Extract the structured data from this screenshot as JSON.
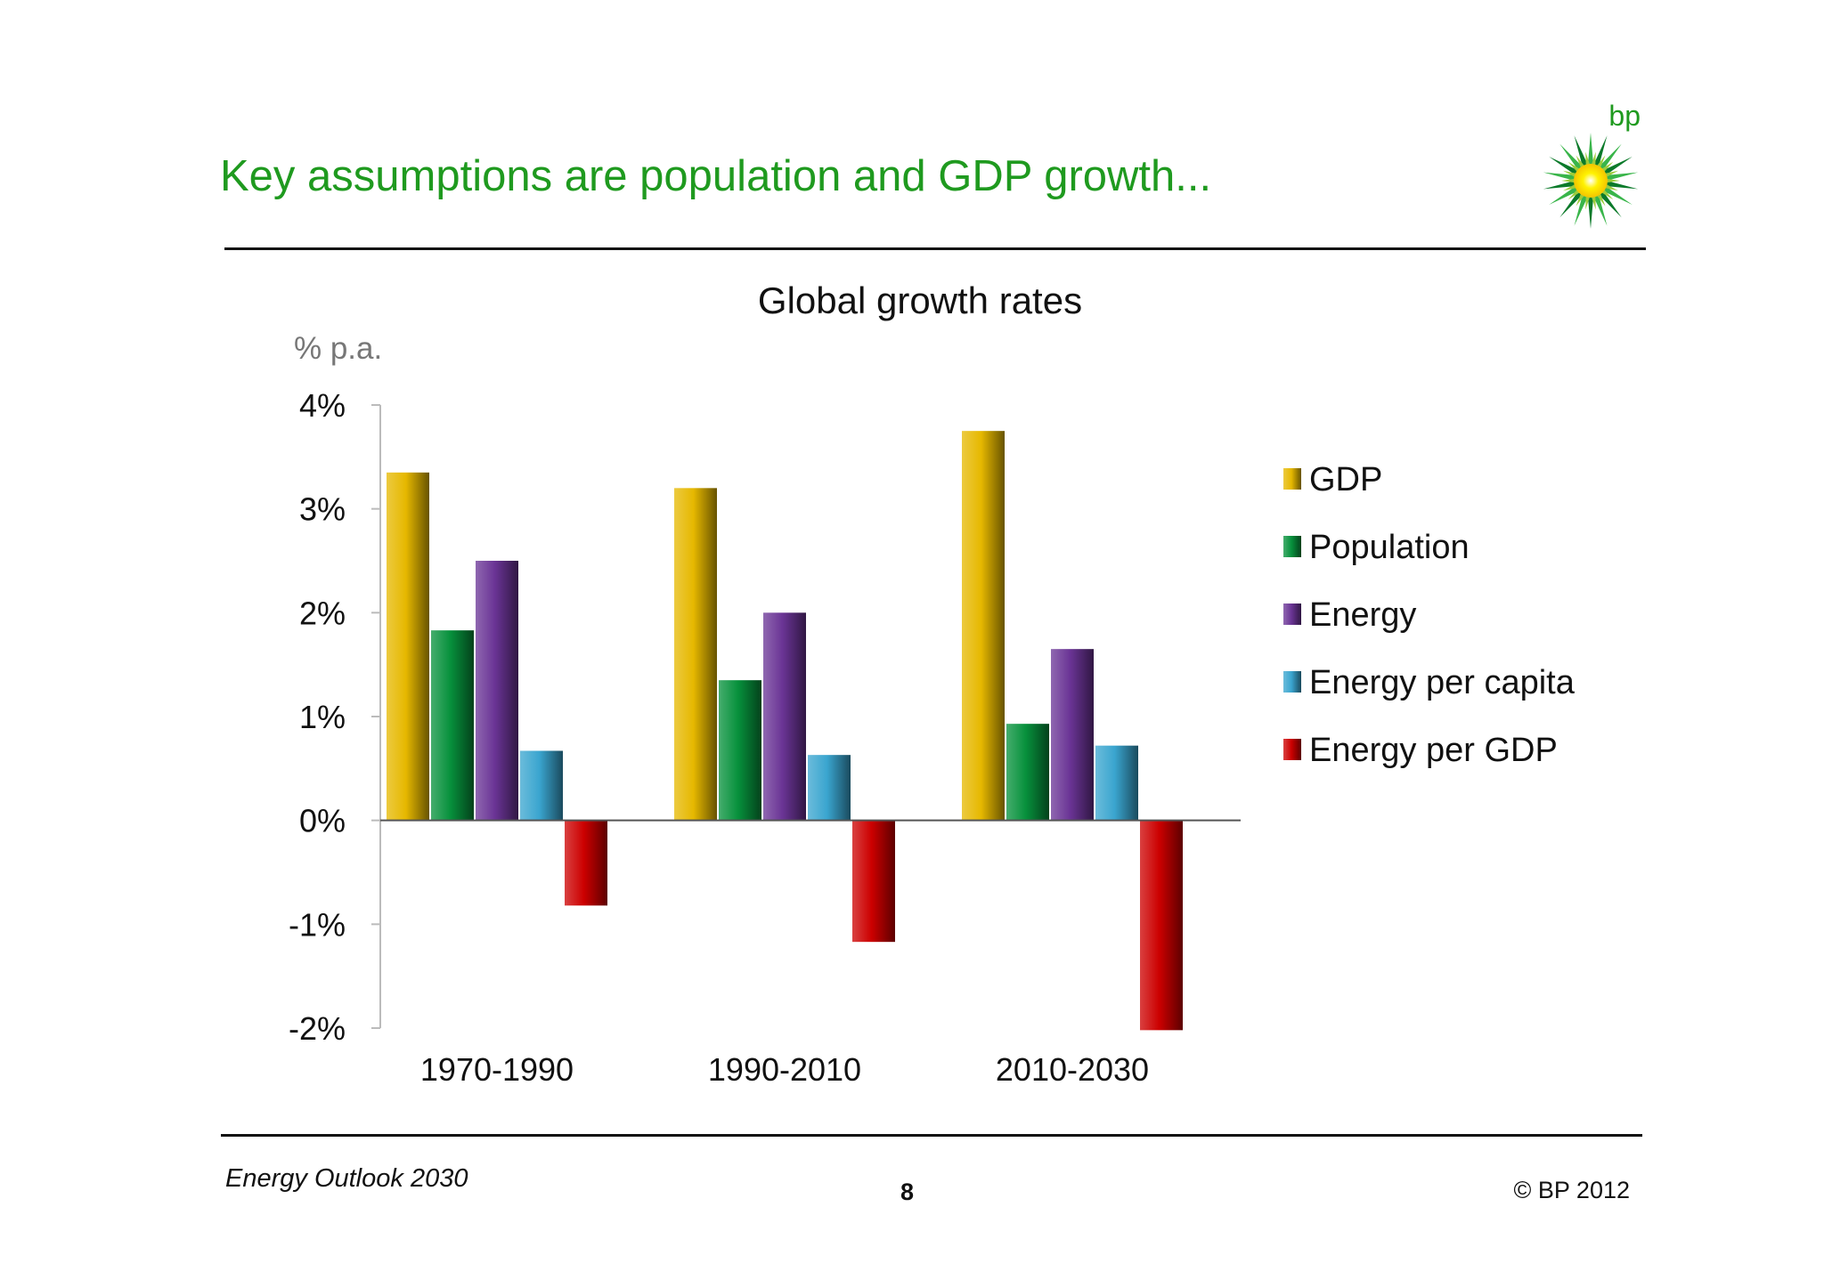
{
  "slide": {
    "title": "Key assumptions are population and GDP growth...",
    "brand": "bp",
    "footer_left": "Energy Outlook 2030",
    "page_number": "8",
    "copyright": "© BP 2012"
  },
  "colors": {
    "title": "#1f9a1f",
    "GDP": "#e6b800",
    "Population": "#07913c",
    "Energy": "#6a3495",
    "Energy per capita": "#3aa5cf",
    "Energy per GDP": "#cc0000"
  },
  "chart_data": {
    "type": "bar",
    "title": "Global growth rates",
    "ylabel": "% p.a.",
    "ylim": [
      -2,
      4
    ],
    "yticks": [
      "4%",
      "3%",
      "2%",
      "1%",
      "0%",
      "-1%",
      "-2%"
    ],
    "categories": [
      "1970-1990",
      "1990-2010",
      "2010-2030"
    ],
    "series": [
      {
        "name": "GDP",
        "values": [
          3.35,
          3.2,
          3.75
        ]
      },
      {
        "name": "Population",
        "values": [
          1.83,
          1.35,
          0.93
        ]
      },
      {
        "name": "Energy",
        "values": [
          2.5,
          2.0,
          1.65
        ]
      },
      {
        "name": "Energy per capita",
        "values": [
          0.67,
          0.63,
          0.72
        ]
      },
      {
        "name": "Energy per GDP",
        "values": [
          -0.82,
          -1.17,
          -2.02
        ]
      }
    ],
    "legend_position": "right",
    "grid": false
  }
}
